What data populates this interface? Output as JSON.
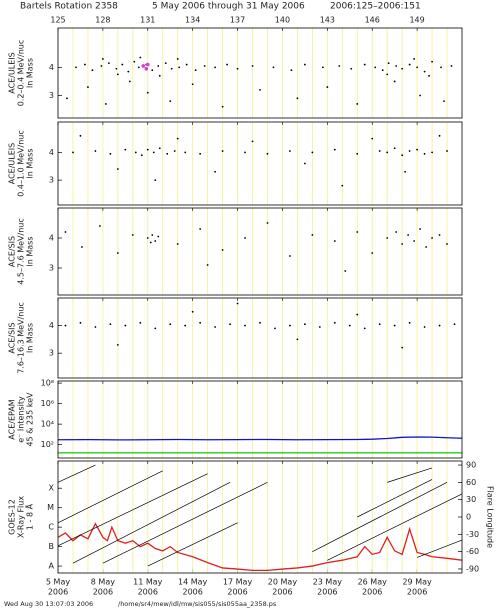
{
  "title": "Bartels Rotation 2358",
  "date_range": "5 May 2006 through 31 May 2006",
  "doy_range": "2006:125–2006:151",
  "footer_time": "Wed Aug 30 13:07:03 2006",
  "footer_path": "/home/sr4/mew/idl/mw/sis055/sis055aa_2358.ps",
  "xlim": [
    125,
    152
  ],
  "doy_ticks": [
    125,
    128,
    131,
    134,
    137,
    140,
    143,
    146,
    149
  ],
  "date_ticks": [
    {
      "value": 125,
      "label": "5 May"
    },
    {
      "value": 128,
      "label": "8 May"
    },
    {
      "value": 131,
      "label": "11 May"
    },
    {
      "value": 134,
      "label": "14 May"
    },
    {
      "value": 137,
      "label": "17 May"
    },
    {
      "value": 140,
      "label": "20 May"
    },
    {
      "value": 143,
      "label": "23 May"
    },
    {
      "value": 146,
      "label": "26 May"
    },
    {
      "value": 149,
      "label": "29 May"
    }
  ],
  "year": "2006",
  "day_grid": [
    125,
    126,
    127,
    128,
    129,
    130,
    131,
    132,
    133,
    134,
    135,
    136,
    137,
    138,
    139,
    140,
    141,
    142,
    143,
    144,
    145,
    146,
    147,
    148,
    149,
    150,
    151
  ],
  "chart_data": [
    {
      "type": "scatter",
      "ylabel": [
        "ACE/ULEIS",
        "0.2–0.4 MeV/nuc",
        "ln Mass"
      ],
      "ylim": [
        2.2,
        5.4
      ],
      "yticks": [
        3,
        4
      ],
      "series": [
        {
          "color": "#000000",
          "x": [
            126.2,
            126.8,
            127.3,
            127.9,
            128.4,
            128.9,
            129.3,
            129.7,
            130.1,
            130.4,
            130.9,
            131.3,
            131.7,
            132.2,
            132.6,
            133.1,
            133.6,
            134.2,
            134.8,
            135.5,
            136.3,
            137.0,
            138.0,
            139.4,
            140.6,
            141.5,
            142.7,
            143.8,
            144.6,
            145.5,
            146.2,
            146.7,
            147.1,
            147.6,
            148.0,
            148.5,
            149.0,
            149.5,
            150.0,
            150.6,
            151.3,
            125.6,
            127.0,
            128.2,
            129.8,
            131.0,
            132.5,
            134.0,
            136.0,
            138.5,
            141.0,
            143.0,
            145.0,
            147.5,
            149.2,
            150.8,
            128.0,
            129.0,
            130.5,
            131.8,
            133.0,
            147.0,
            148.8,
            149.8
          ],
          "y": [
            4.0,
            4.1,
            3.9,
            4.05,
            4.15,
            3.95,
            4.1,
            3.85,
            4.2,
            4.0,
            4.1,
            3.9,
            4.05,
            4.15,
            3.95,
            4.0,
            4.1,
            3.9,
            4.05,
            4.0,
            4.1,
            3.95,
            4.05,
            4.0,
            3.9,
            4.1,
            4.0,
            4.05,
            3.95,
            4.1,
            4.0,
            3.9,
            4.15,
            4.05,
            3.95,
            4.1,
            4.0,
            3.85,
            4.2,
            4.0,
            4.05,
            2.9,
            3.3,
            2.7,
            3.5,
            3.1,
            2.8,
            3.4,
            2.6,
            3.2,
            2.9,
            3.3,
            2.7,
            3.5,
            3.0,
            2.8,
            4.3,
            3.75,
            4.35,
            3.7,
            4.3,
            3.75,
            4.3,
            3.7
          ]
        },
        {
          "color": "#d040d0",
          "x": [
            130.7,
            130.9,
            131.0
          ],
          "y": [
            4.05,
            3.95,
            4.1
          ]
        }
      ]
    },
    {
      "type": "scatter",
      "ylabel": [
        "ACE/ULEIS",
        "0.4–1.0 MeV/nuc",
        "ln Mass"
      ],
      "ylim": [
        2.1,
        5.1
      ],
      "yticks": [
        3,
        4
      ],
      "series": [
        {
          "color": "#000000",
          "x": [
            126.0,
            127.5,
            128.5,
            129.5,
            130.2,
            130.6,
            131.0,
            131.4,
            131.8,
            132.3,
            132.8,
            133.5,
            134.5,
            136.0,
            137.5,
            139.0,
            140.5,
            142.0,
            143.5,
            145.0,
            146.5,
            147.0,
            147.5,
            148.0,
            148.5,
            149.0,
            149.5,
            150.0,
            151.0,
            126.5,
            129.0,
            131.5,
            133.0,
            135.5,
            138.0,
            141.5,
            144.0,
            146.0,
            148.2,
            150.5
          ],
          "y": [
            4.0,
            4.05,
            3.95,
            4.1,
            4.0,
            3.9,
            4.1,
            4.0,
            4.15,
            3.95,
            4.05,
            4.0,
            3.95,
            4.05,
            4.0,
            3.95,
            4.05,
            4.0,
            4.1,
            3.95,
            4.05,
            4.0,
            4.15,
            3.9,
            4.05,
            4.1,
            3.95,
            4.0,
            4.05,
            4.6,
            3.4,
            3.0,
            4.5,
            3.3,
            4.4,
            3.6,
            2.8,
            4.5,
            3.3,
            4.6
          ]
        }
      ]
    },
    {
      "type": "scatter",
      "ylabel": [
        "ACE/SIS",
        "4.5–7.6 MeV/nuc",
        "ln Mass"
      ],
      "ylim": [
        2.1,
        5.0
      ],
      "yticks": [
        3,
        4
      ],
      "series": [
        {
          "color": "#000000",
          "x": [
            131.0,
            131.3,
            131.5,
            131.7,
            131.2,
            147.0,
            147.6,
            148.0,
            148.4,
            148.8,
            149.2,
            149.6,
            150.0,
            150.5,
            125.5,
            126.6,
            127.8,
            129.0,
            130.0,
            133.0,
            134.5,
            136.0,
            137.5,
            139.0,
            140.5,
            142.0,
            143.5,
            145.0,
            146.0,
            151.0,
            144.2,
            135.0
          ],
          "y": [
            4.0,
            4.1,
            3.9,
            4.05,
            3.85,
            4.0,
            4.2,
            3.8,
            4.1,
            3.9,
            4.3,
            3.7,
            4.0,
            4.1,
            4.2,
            3.7,
            4.4,
            3.5,
            4.1,
            3.8,
            4.3,
            3.6,
            4.0,
            4.5,
            3.4,
            4.1,
            3.9,
            4.2,
            3.5,
            3.8,
            2.9,
            3.1
          ]
        }
      ]
    },
    {
      "type": "scatter",
      "ylabel": [
        "ACE/SIS",
        "7.6–16.3 MeV/nuc",
        "ln Mass"
      ],
      "ylim": [
        2.1,
        5.0
      ],
      "yticks": [
        3,
        4
      ],
      "series": [
        {
          "color": "#000000",
          "x": [
            125.5,
            126.5,
            127.5,
            128.5,
            129.5,
            130.5,
            131.5,
            132.5,
            133.5,
            134.5,
            135.5,
            136.5,
            137.5,
            138.5,
            139.5,
            140.5,
            141.5,
            142.5,
            143.5,
            144.5,
            145.5,
            146.5,
            147.5,
            148.5,
            149.5,
            150.5,
            151.5,
            129.0,
            134.0,
            137.0,
            141.0,
            145.0,
            148.0
          ],
          "y": [
            4.0,
            4.1,
            3.95,
            4.05,
            4.0,
            4.1,
            3.9,
            4.05,
            4.0,
            4.1,
            3.95,
            4.05,
            4.0,
            4.1,
            3.9,
            4.0,
            4.05,
            3.95,
            4.1,
            4.0,
            3.9,
            4.05,
            4.0,
            4.1,
            3.95,
            4.0,
            4.05,
            3.3,
            4.5,
            4.8,
            3.5,
            4.4,
            3.2
          ]
        }
      ]
    },
    {
      "type": "line",
      "ylabel": [
        "ACE/EPAM",
        "e⁻ Intensity",
        "45 & 235 keV"
      ],
      "log": true,
      "ylim": [
        5,
        160000000
      ],
      "yticks": [
        {
          "value": 100,
          "label": "10²"
        },
        {
          "value": 10000,
          "label": "10⁴"
        },
        {
          "value": 1000000,
          "label": "10⁶"
        },
        {
          "value": 100000000,
          "label": "10⁸"
        }
      ],
      "series": [
        {
          "color": "#1010d0",
          "x": [
            125,
            127,
            129,
            131,
            133,
            135,
            137,
            139,
            141,
            143,
            145,
            146,
            147,
            148,
            149,
            150,
            151,
            152
          ],
          "y": [
            300,
            310,
            290,
            300,
            320,
            300,
            310,
            320,
            300,
            310,
            320,
            340,
            400,
            520,
            560,
            540,
            470,
            420
          ]
        },
        {
          "color": "#20d020",
          "x": [
            125,
            152
          ],
          "y": [
            16,
            16
          ]
        }
      ]
    },
    {
      "type": "line",
      "ylabel": [
        "GOES-12",
        "X-Ray Flux",
        "1 - 8 Å"
      ],
      "y2label": "Flare Longitude",
      "log": true,
      "ylim": [
        4.4e-09,
        0.0025
      ],
      "yticks": [
        {
          "value": 0.0001,
          "label": "X"
        },
        {
          "value": 1e-05,
          "label": "M"
        },
        {
          "value": 1e-06,
          "label": "C"
        },
        {
          "value": 1e-07,
          "label": "B"
        },
        {
          "value": 1e-08,
          "label": "A"
        }
      ],
      "y2lim": [
        -97,
        97
      ],
      "y2ticks": [
        90,
        60,
        30,
        0,
        -30,
        -60,
        -90
      ],
      "series": [
        {
          "color": "#e02020",
          "x": [
            125,
            125.5,
            126,
            126.5,
            127,
            127.5,
            128,
            128.3,
            128.6,
            129,
            129.5,
            130,
            130.5,
            131,
            131.5,
            132,
            132.5,
            133,
            134,
            135,
            136,
            137,
            138,
            139,
            140,
            141,
            142,
            143,
            144,
            145,
            145.5,
            146,
            146.5,
            147,
            147.5,
            148,
            148.5,
            149,
            149.5,
            150,
            151,
            152
          ],
          "y": [
            3e-07,
            5e-07,
            2e-07,
            4e-07,
            2.5e-07,
            1.5e-06,
            3e-07,
            2e-07,
            1e-06,
            2e-07,
            1.5e-07,
            2e-07,
            1e-07,
            1.5e-07,
            8e-08,
            6e-08,
            1e-07,
            5e-08,
            3e-08,
            1.5e-08,
            8e-09,
            7e-09,
            6e-09,
            6e-09,
            7e-09,
            8e-09,
            1e-08,
            1.5e-08,
            2e-08,
            3e-08,
            1e-07,
            4e-08,
            5e-08,
            3e-07,
            6e-08,
            4e-08,
            8e-07,
            5e-08,
            4e-08,
            3e-08,
            2.5e-08,
            2e-08
          ]
        },
        {
          "color": "#000000",
          "axis": "y2",
          "x": [
            125,
            127.5
          ],
          "y": [
            60,
            90
          ]
        },
        {
          "color": "#000000",
          "axis": "y2",
          "x": [
            125,
            132
          ],
          "y": [
            -10,
            80
          ]
        },
        {
          "color": "#000000",
          "axis": "y2",
          "x": [
            125,
            135
          ],
          "y": [
            -50,
            75
          ]
        },
        {
          "color": "#000000",
          "axis": "y2",
          "x": [
            126,
            136.5
          ],
          "y": [
            -80,
            60
          ]
        },
        {
          "color": "#000000",
          "axis": "y2",
          "x": [
            128,
            139
          ],
          "y": [
            -80,
            60
          ]
        },
        {
          "color": "#000000",
          "axis": "y2",
          "x": [
            131,
            137
          ],
          "y": [
            -85,
            -10
          ]
        },
        {
          "color": "#000000",
          "axis": "y2",
          "x": [
            142,
            151
          ],
          "y": [
            -60,
            60
          ]
        },
        {
          "color": "#000000",
          "axis": "y2",
          "x": [
            143,
            152
          ],
          "y": [
            -75,
            40
          ]
        },
        {
          "color": "#000000",
          "axis": "y2",
          "x": [
            145,
            150
          ],
          "y": [
            0,
            65
          ]
        },
        {
          "color": "#000000",
          "axis": "y2",
          "x": [
            147,
            150
          ],
          "y": [
            60,
            85
          ]
        },
        {
          "color": "#000000",
          "axis": "y2",
          "x": [
            149,
            152
          ],
          "y": [
            -70,
            -40
          ]
        }
      ]
    }
  ]
}
